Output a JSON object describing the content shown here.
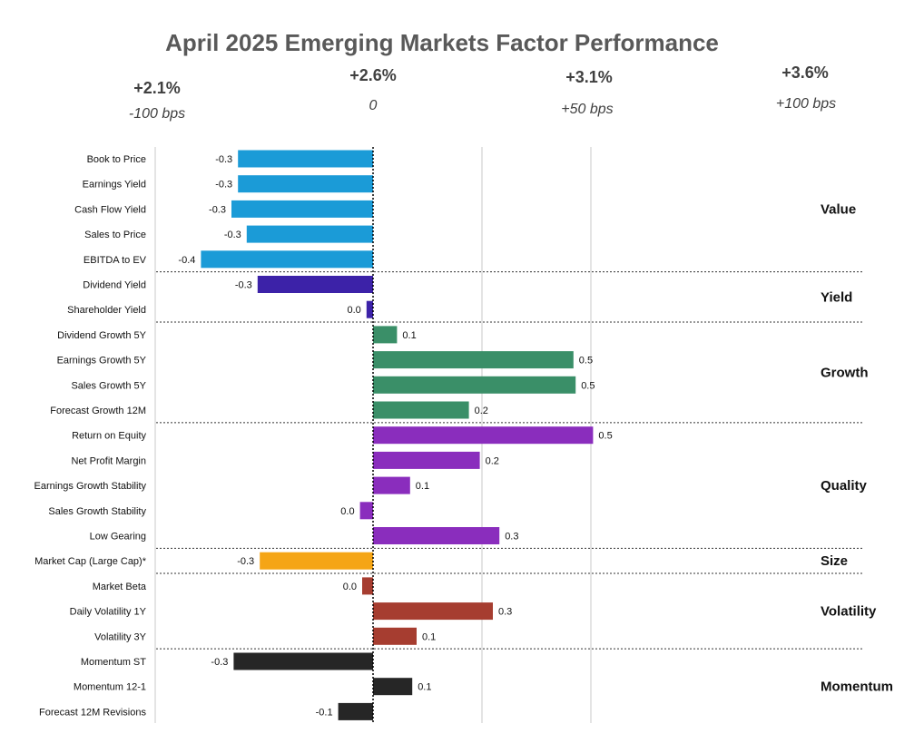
{
  "chart_data": {
    "type": "bar",
    "orientation": "horizontal",
    "title": "April 2025 Emerging Markets Factor Performance",
    "reference_lines": [
      {
        "value": -100,
        "return_label": "+2.1%",
        "bps_label": "-100 bps"
      },
      {
        "value": 0,
        "return_label": "+2.6%",
        "bps_label": "0"
      },
      {
        "value": 50,
        "return_label": "+3.1%",
        "bps_label": "+50 bps"
      },
      {
        "value": 100,
        "return_label": "+3.6%",
        "bps_label": "+100 bps"
      }
    ],
    "xlim": [
      -100,
      100
    ],
    "groups": [
      {
        "name": "Value",
        "color": "#1B9BD7",
        "factors": [
          {
            "label": "Book to Price",
            "value": -0.3,
            "bar": -62,
            "value_label": "-0.3"
          },
          {
            "label": "Earnings Yield",
            "value": -0.3,
            "bar": -62,
            "value_label": "-0.3"
          },
          {
            "label": "Cash Flow Yield",
            "value": -0.3,
            "bar": -65,
            "value_label": "-0.3"
          },
          {
            "label": "Sales to Price",
            "value": -0.3,
            "bar": -58,
            "value_label": "-0.3"
          },
          {
            "label": "EBITDA to EV",
            "value": -0.4,
            "bar": -79,
            "value_label": "-0.4"
          }
        ]
      },
      {
        "name": "Yield",
        "color": "#3C22A8",
        "factors": [
          {
            "label": "Dividend Yield",
            "value": -0.3,
            "bar": -53,
            "value_label": "-0.3"
          },
          {
            "label": "Shareholder Yield",
            "value": 0.0,
            "bar": -3,
            "value_label": "0.0"
          }
        ]
      },
      {
        "name": "Growth",
        "color": "#3A8F68",
        "factors": [
          {
            "label": "Dividend Growth 5Y",
            "value": 0.1,
            "bar": 11,
            "value_label": "0.1"
          },
          {
            "label": "Earnings Growth 5Y",
            "value": 0.5,
            "bar": 92,
            "value_label": "0.5"
          },
          {
            "label": "Sales Growth 5Y",
            "value": 0.5,
            "bar": 93,
            "value_label": "0.5"
          },
          {
            "label": "Forecast Growth 12M",
            "value": 0.2,
            "bar": 44,
            "value_label": "0.2"
          }
        ]
      },
      {
        "name": "Quality",
        "color": "#8A2DBD",
        "factors": [
          {
            "label": "Return on Equity",
            "value": 0.5,
            "bar": 101,
            "value_label": "0.5"
          },
          {
            "label": "Net Profit Margin",
            "value": 0.2,
            "bar": 49,
            "value_label": "0.2"
          },
          {
            "label": "Earnings Growth Stability",
            "value": 0.1,
            "bar": 17,
            "value_label": "0.1"
          },
          {
            "label": "Sales Growth Stability",
            "value": 0.0,
            "bar": -6,
            "value_label": "0.0"
          },
          {
            "label": "Low Gearing",
            "value": 0.3,
            "bar": 58,
            "value_label": "0.3"
          }
        ]
      },
      {
        "name": "Size",
        "color": "#F5A515",
        "factors": [
          {
            "label": "Market Cap (Large Cap)*",
            "value": -0.3,
            "bar": -52,
            "value_label": "-0.3"
          }
        ]
      },
      {
        "name": "Volatility",
        "color": "#A63D30",
        "factors": [
          {
            "label": "Market Beta",
            "value": 0.0,
            "bar": -5,
            "value_label": "0.0"
          },
          {
            "label": "Daily Volatility 1Y",
            "value": 0.3,
            "bar": 55,
            "value_label": "0.3"
          },
          {
            "label": "Volatility 3Y",
            "value": 0.1,
            "bar": 20,
            "value_label": "0.1"
          }
        ]
      },
      {
        "name": "Momentum",
        "color": "#262626",
        "factors": [
          {
            "label": "Momentum ST",
            "value": -0.3,
            "bar": -64,
            "value_label": "-0.3"
          },
          {
            "label": "Momentum 12-1",
            "value": 0.1,
            "bar": 18,
            "value_label": "0.1"
          },
          {
            "label": "Forecast 12M Revisions",
            "value": -0.1,
            "bar": -16,
            "value_label": "-0.1"
          }
        ]
      }
    ]
  }
}
